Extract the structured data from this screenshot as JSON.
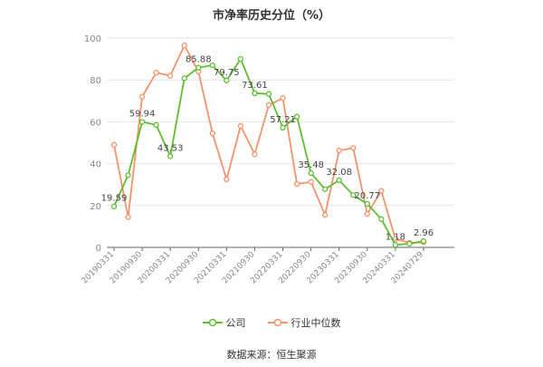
{
  "chart_data": {
    "type": "line",
    "title": "市净率历史分位（%）",
    "x": [
      "20190331",
      "20190630",
      "20190930",
      "20191231",
      "20200331",
      "20200630",
      "20200930",
      "20201231",
      "20210331",
      "20210630",
      "20210930",
      "20211231",
      "20220331",
      "20220630",
      "20220930",
      "20221231",
      "20230331",
      "20230630",
      "20230930",
      "20231231",
      "20240331",
      "20240630",
      "20240729"
    ],
    "x_tick_labels": [
      "20190331",
      "20190930",
      "20200331",
      "20200930",
      "20210331",
      "20210930",
      "20220331",
      "20220930",
      "20230331",
      "20230930",
      "20240331",
      "20240729"
    ],
    "ylim": [
      0,
      100
    ],
    "y_ticks": [
      0,
      20,
      40,
      60,
      80,
      100
    ],
    "grid": true,
    "legend_placement": "bottom",
    "series": [
      {
        "name": "公司",
        "color": "#5cbf2f",
        "values": [
          19.59,
          34.5,
          59.94,
          58.5,
          43.53,
          80.8,
          85.88,
          87.0,
          79.75,
          90.0,
          73.61,
          73.3,
          57.21,
          62.5,
          35.48,
          27.8,
          32.08,
          25.0,
          20.77,
          13.5,
          1.18,
          1.8,
          2.96
        ],
        "labels": {
          "0": "19.59",
          "2": "59.94",
          "4": "43.53",
          "6": "85.88",
          "8": "79.75",
          "10": "73.61",
          "12": "57.21",
          "14": "35.48",
          "16": "32.08",
          "18": "20.77",
          "20": "1.18",
          "22": "2.96"
        }
      },
      {
        "name": "行业中位数",
        "color": "#f4936a",
        "values": [
          49.0,
          14.5,
          72.0,
          83.5,
          82.0,
          96.5,
          84.0,
          54.5,
          32.5,
          58.0,
          44.5,
          68.0,
          71.3,
          30.3,
          31.3,
          15.5,
          46.3,
          47.5,
          16.0,
          27.0,
          4.0,
          2.2,
          2.4
        ]
      }
    ]
  },
  "source": "数据来源：恒生聚源"
}
